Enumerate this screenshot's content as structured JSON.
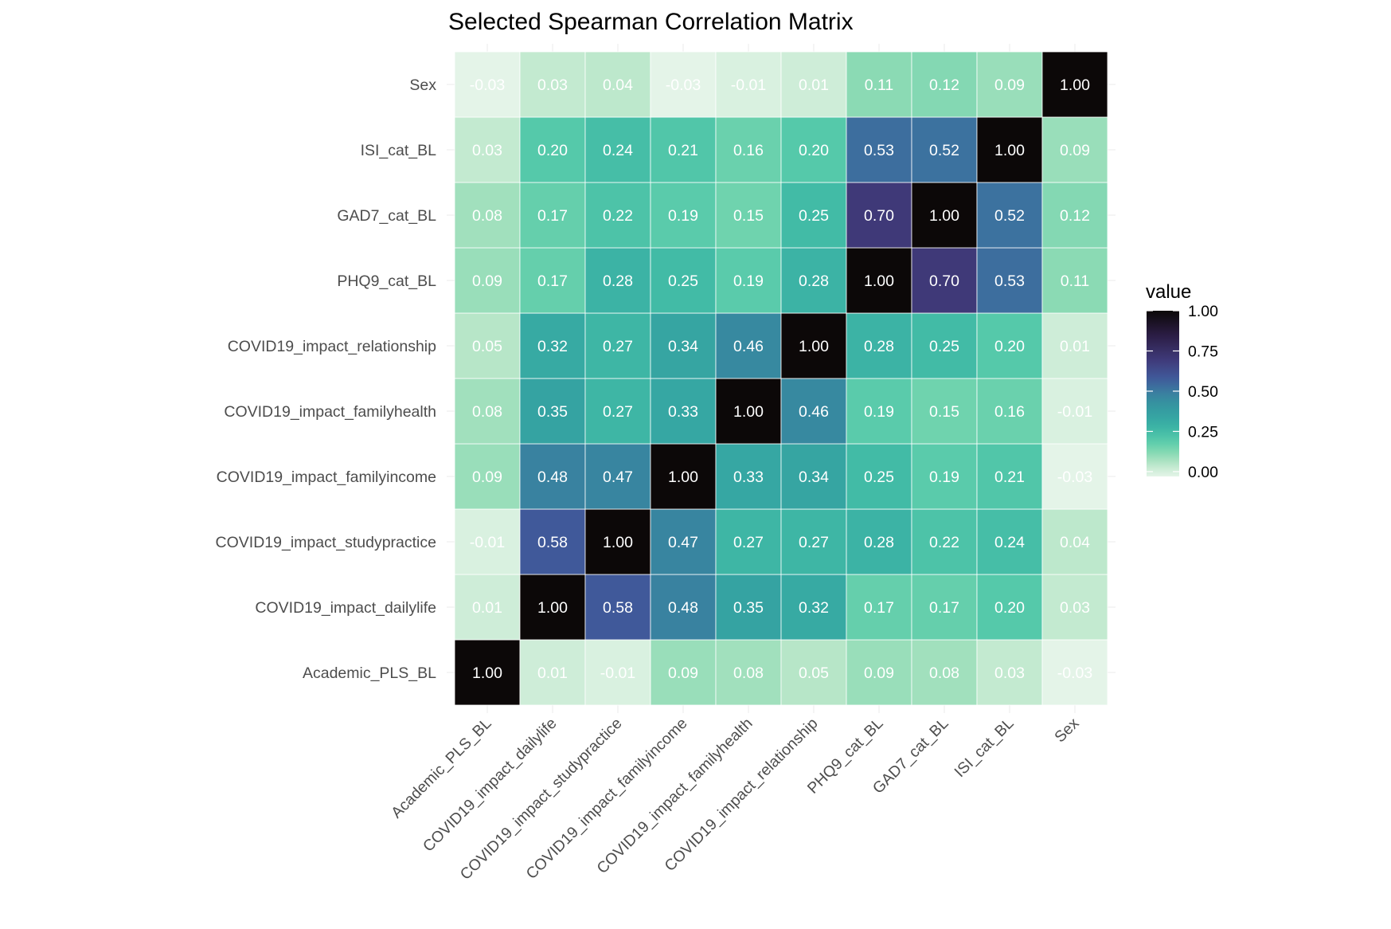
{
  "chart_data": {
    "type": "heatmap",
    "title": "Selected Spearman Correlation Matrix",
    "xlabel": "",
    "ylabel": "",
    "variables": [
      "Academic_PLS_BL",
      "COVID19_impact_dailylife",
      "COVID19_impact_studypractice",
      "COVID19_impact_familyincome",
      "COVID19_impact_familyhealth",
      "COVID19_impact_relationship",
      "PHQ9_cat_BL",
      "GAD7_cat_BL",
      "ISI_cat_BL",
      "Sex"
    ],
    "matrix": [
      [
        1.0,
        0.01,
        -0.01,
        0.09,
        0.08,
        0.05,
        0.09,
        0.08,
        0.03,
        -0.03
      ],
      [
        0.01,
        1.0,
        0.58,
        0.48,
        0.35,
        0.32,
        0.17,
        0.17,
        0.2,
        0.03
      ],
      [
        -0.01,
        0.58,
        1.0,
        0.47,
        0.27,
        0.27,
        0.28,
        0.22,
        0.24,
        0.04
      ],
      [
        0.09,
        0.48,
        0.47,
        1.0,
        0.33,
        0.34,
        0.25,
        0.19,
        0.21,
        -0.03
      ],
      [
        0.08,
        0.35,
        0.27,
        0.33,
        1.0,
        0.46,
        0.19,
        0.15,
        0.16,
        -0.01
      ],
      [
        0.05,
        0.32,
        0.27,
        0.34,
        0.46,
        1.0,
        0.28,
        0.25,
        0.2,
        0.01
      ],
      [
        0.09,
        0.17,
        0.28,
        0.25,
        0.19,
        0.28,
        1.0,
        0.7,
        0.53,
        0.11
      ],
      [
        0.08,
        0.17,
        0.22,
        0.19,
        0.15,
        0.25,
        0.7,
        1.0,
        0.52,
        0.12
      ],
      [
        0.03,
        0.2,
        0.24,
        0.21,
        0.16,
        0.2,
        0.53,
        0.52,
        1.0,
        0.09
      ],
      [
        -0.03,
        0.03,
        0.04,
        -0.03,
        -0.01,
        0.01,
        0.11,
        0.12,
        0.09,
        1.0
      ]
    ],
    "value_range": [
      -0.03,
      1.0
    ],
    "legend": {
      "title": "value",
      "ticks": [
        "1.00",
        "0.75",
        "0.50",
        "0.25",
        "0.00"
      ],
      "tick_values": [
        1.0,
        0.75,
        0.5,
        0.25,
        0.0
      ],
      "placement": "right"
    },
    "colormap": [
      {
        "value": -0.03,
        "color": "#e4f4e8"
      },
      {
        "value": 0.0,
        "color": "#d4efdc"
      },
      {
        "value": 0.05,
        "color": "#b7e6c8"
      },
      {
        "value": 0.1,
        "color": "#92dcb6"
      },
      {
        "value": 0.15,
        "color": "#6fd3ae"
      },
      {
        "value": 0.2,
        "color": "#55c9aa"
      },
      {
        "value": 0.25,
        "color": "#42bba6"
      },
      {
        "value": 0.3,
        "color": "#38aea4"
      },
      {
        "value": 0.35,
        "color": "#35a3a2"
      },
      {
        "value": 0.45,
        "color": "#368ca0"
      },
      {
        "value": 0.5,
        "color": "#3b7ba0"
      },
      {
        "value": 0.58,
        "color": "#40599a"
      },
      {
        "value": 0.7,
        "color": "#3f3978"
      },
      {
        "value": 0.85,
        "color": "#2a1c43"
      },
      {
        "value": 1.0,
        "color": "#0c0808"
      }
    ],
    "text_colors": {
      "light": "#ffffff",
      "dark": "#ffffff"
    },
    "grid": false
  }
}
